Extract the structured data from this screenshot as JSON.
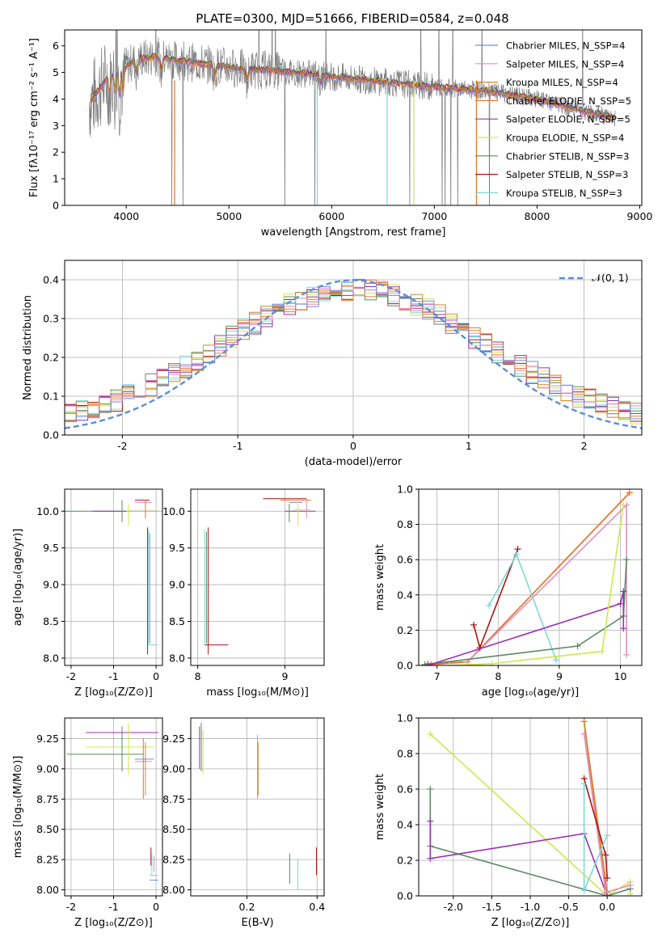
{
  "title": "PLATE=0300, MJD=51666, FIBERID=0584, z=0.048",
  "colors": {
    "chabrier_miles": "#6f8ede",
    "salpeter_miles": "#e48ec0",
    "kroupa_miles": "#d3862c",
    "chabrier_elodie": "#e8742c",
    "salpeter_elodie": "#9a2fb0",
    "kroupa_elodie": "#cfe84a",
    "chabrier_stelib": "#5a8a64",
    "salpeter_stelib": "#aa1414",
    "kroupa_stelib": "#7ed7d8",
    "data": "#7f7f7f",
    "normal": "#5b8fd6"
  },
  "chart_data": [
    {
      "id": "spectrum",
      "type": "line",
      "title": "PLATE=0300, MJD=51666, FIBERID=0584, z=0.048",
      "xlabel": "wavelength [Angstrom, rest frame]",
      "ylabel": "Flux [fλ10⁻¹⁷ erg cm⁻² s⁻¹ A⁻¹]",
      "xlim": [
        3400,
        9020
      ],
      "ylim": [
        0,
        6.6
      ],
      "xticks": [
        4000,
        5000,
        6000,
        7000,
        8000,
        9000
      ],
      "yticks": [
        0,
        1,
        2,
        3,
        4,
        5,
        6
      ],
      "grid": false,
      "legend_position": "right",
      "series": [
        {
          "name": "Chabrier MILES, N_SSP=4",
          "color_key": "chabrier_miles"
        },
        {
          "name": "Salpeter MILES, N_SSP=4",
          "color_key": "salpeter_miles"
        },
        {
          "name": "Kroupa MILES, N_SSP=4",
          "color_key": "kroupa_miles"
        },
        {
          "name": "Chabrier ELODIE, N_SSP=5",
          "color_key": "chabrier_elodie"
        },
        {
          "name": "Salpeter ELODIE, N_SSP=5",
          "color_key": "salpeter_elodie"
        },
        {
          "name": "Kroupa ELODIE, N_SSP=4",
          "color_key": "kroupa_elodie"
        },
        {
          "name": "Chabrier STELIB, N_SSP=3",
          "color_key": "chabrier_stelib"
        },
        {
          "name": "Salpeter STELIB, N_SSP=3",
          "color_key": "salpeter_stelib"
        },
        {
          "name": "Kroupa STELIB, N_SSP=3",
          "color_key": "kroupa_stelib"
        }
      ],
      "continuum": {
        "x": [
          3650,
          3800,
          3950,
          4100,
          4300,
          4500,
          4800,
          5100,
          5500,
          6000,
          6500,
          7000,
          7500,
          8000,
          8500,
          8750
        ],
        "y": [
          3.9,
          4.7,
          5.1,
          5.5,
          5.6,
          5.45,
          5.3,
          5.15,
          5.05,
          4.85,
          4.65,
          4.45,
          4.3,
          4.0,
          3.5,
          3.3
        ]
      }
    },
    {
      "id": "residuals",
      "type": "line",
      "xlabel": "(data-model)/error",
      "ylabel": "Normed distribution",
      "xlim": [
        -2.5,
        2.5
      ],
      "ylim": [
        0,
        0.45
      ],
      "xticks": [
        -2,
        -1,
        0,
        1,
        2
      ],
      "yticks": [
        0.0,
        0.1,
        0.2,
        0.3,
        0.4
      ],
      "grid": true,
      "legend_position": "top-right",
      "series": [
        {
          "name": "𝒩(0, 1)",
          "function": "standard normal pdf",
          "style": "dashed"
        }
      ],
      "histogram_bin_width": 0.1
    },
    {
      "id": "age-vs-Z",
      "type": "scatter",
      "xlabel": "Z [log₁₀(Z/Z⊙)]",
      "ylabel": "age  [log₁₀(age/yr)]",
      "xlim": [
        -2.15,
        0.15
      ],
      "ylim": [
        7.9,
        10.3
      ],
      "xticks": [
        -2,
        -1,
        0
      ],
      "yticks": [
        8.0,
        8.5,
        9.0,
        9.5,
        10.0
      ],
      "grid": true
    },
    {
      "id": "age-vs-mass",
      "type": "scatter",
      "xlabel": "mass [log₁₀(M/M⊙)]",
      "xlim": [
        7.92,
        9.45
      ],
      "ylim": [
        7.9,
        10.3
      ],
      "xticks": [
        8,
        9
      ],
      "yticks": [
        8.0,
        8.5,
        9.0,
        9.5,
        10.0
      ],
      "grid": true
    },
    {
      "id": "weight-vs-age",
      "type": "line",
      "xlabel": "age  [log₁₀(age/yr)]",
      "ylabel": "mass weight",
      "xlim": [
        6.7,
        10.35
      ],
      "ylim": [
        0,
        1.0
      ],
      "xticks": [
        7,
        8,
        9,
        10
      ],
      "yticks": [
        0.0,
        0.2,
        0.4,
        0.6,
        0.8,
        1.0
      ],
      "grid": true,
      "series": [
        {
          "color_key": "kroupa_miles",
          "x": [
            6.85,
            7.5,
            10.15
          ],
          "y": [
            0.01,
            0.02,
            0.98
          ]
        },
        {
          "color_key": "chabrier_elodie",
          "x": [
            6.9,
            7.5,
            10.15
          ],
          "y": [
            0.005,
            0.02,
            0.98
          ]
        },
        {
          "color_key": "salpeter_miles",
          "x": [
            7.5,
            10.1,
            10.1
          ],
          "y": [
            0.02,
            0.91,
            0.06
          ]
        },
        {
          "color_key": "salpeter_stelib",
          "x": [
            7.6,
            7.7,
            8.32
          ],
          "y": [
            0.23,
            0.1,
            0.66
          ]
        },
        {
          "color_key": "kroupa_stelib",
          "x": [
            7.85,
            8.3,
            8.95
          ],
          "y": [
            0.34,
            0.63,
            0.03
          ]
        },
        {
          "color_key": "chabrier_stelib",
          "x": [
            6.8,
            9.3,
            10.05,
            10.1
          ],
          "y": [
            0.005,
            0.11,
            0.28,
            0.6
          ]
        },
        {
          "color_key": "salpeter_elodie",
          "x": [
            6.85,
            10.0,
            10.05,
            10.05
          ],
          "y": [
            0.0,
            0.35,
            0.42,
            0.21
          ]
        },
        {
          "color_key": "kroupa_elodie",
          "x": [
            7.2,
            7.9,
            9.7,
            10.05
          ],
          "y": [
            0.0,
            0.01,
            0.08,
            0.91
          ]
        }
      ]
    },
    {
      "id": "mass-vs-Z",
      "type": "scatter",
      "xlabel": "Z [log₁₀(Z/Z⊙)]",
      "ylabel": "mass [log₁₀(M/M⊙)]",
      "xlim": [
        -2.15,
        0.15
      ],
      "ylim": [
        7.95,
        9.42
      ],
      "xticks": [
        -2,
        -1,
        0
      ],
      "yticks": [
        8.0,
        8.25,
        8.5,
        8.75,
        9.0,
        9.25
      ],
      "grid": true
    },
    {
      "id": "mass-vs-ebv",
      "type": "scatter",
      "xlabel": "E(B-V)",
      "xlim": [
        0.04,
        0.42
      ],
      "ylim": [
        7.95,
        9.42
      ],
      "xticks": [
        0.2,
        0.4
      ],
      "yticks": [
        8.0,
        8.25,
        8.5,
        8.75,
        9.0,
        9.25
      ],
      "grid": true
    },
    {
      "id": "weight-vs-Z",
      "type": "line",
      "xlabel": "Z [log₁₀(Z/Z⊙)]",
      "ylabel": "mass weight",
      "xlim": [
        -2.45,
        0.45
      ],
      "ylim": [
        0,
        1.0
      ],
      "xticks": [
        -2.0,
        -1.5,
        -1.0,
        -0.5,
        0.0
      ],
      "yticks": [
        0.0,
        0.2,
        0.4,
        0.6,
        0.8,
        1.0
      ],
      "grid": true,
      "series": [
        {
          "color_key": "kroupa_elodie",
          "x": [
            -2.3,
            0.0,
            0.3,
            0.3
          ],
          "y": [
            0.91,
            0.0,
            0.08,
            0.01
          ]
        },
        {
          "color_key": "chabrier_stelib",
          "x": [
            -2.3,
            -2.3,
            0.0,
            0.3
          ],
          "y": [
            0.6,
            0.28,
            0.0,
            0.04
          ]
        },
        {
          "color_key": "salpeter_elodie",
          "x": [
            -2.3,
            -2.3,
            -0.3,
            0.0
          ],
          "y": [
            0.42,
            0.21,
            0.35,
            0.0
          ]
        },
        {
          "color_key": "chabrier_elodie",
          "x": [
            -0.3,
            0.0
          ],
          "y": [
            0.98,
            0.02
          ]
        },
        {
          "color_key": "kroupa_miles",
          "x": [
            -0.3,
            -0.02
          ],
          "y": [
            0.98,
            0.02
          ]
        },
        {
          "color_key": "salpeter_miles",
          "x": [
            -0.3,
            -0.02,
            0.3
          ],
          "y": [
            0.91,
            0.02,
            0.06
          ]
        },
        {
          "color_key": "salpeter_stelib",
          "x": [
            -0.3,
            -0.02,
            0.0
          ],
          "y": [
            0.66,
            0.23,
            0.1
          ]
        },
        {
          "color_key": "kroupa_stelib",
          "x": [
            -0.3,
            -0.3,
            0.0
          ],
          "y": [
            0.63,
            0.03,
            0.34
          ]
        }
      ]
    }
  ]
}
